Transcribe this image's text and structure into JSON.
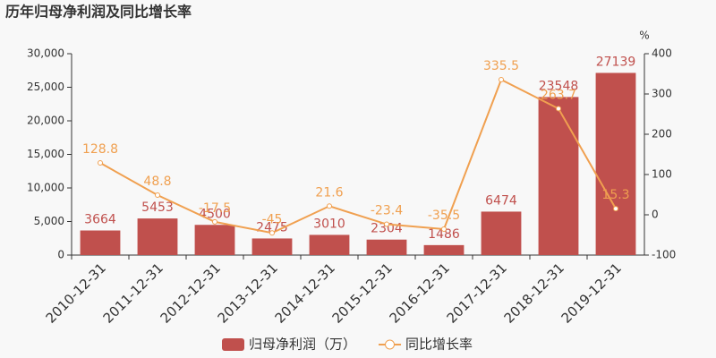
{
  "chart_data": {
    "type": "combo",
    "title": "历年归母净利润及同比增长率",
    "y2_label": "%",
    "categories": [
      "2010-12-31",
      "2011-12-31",
      "2012-12-31",
      "2013-12-31",
      "2014-12-31",
      "2015-12-31",
      "2016-12-31",
      "2017-12-31",
      "2018-12-31",
      "2019-12-31"
    ],
    "series": [
      {
        "name": "归母净利润（万）",
        "type": "bar",
        "color": "#c0504d",
        "values": [
          3664,
          5453,
          4500,
          2475,
          3010,
          2304,
          1486,
          6474,
          23548,
          27139
        ]
      },
      {
        "name": "同比增长率",
        "type": "line",
        "axis": "y2",
        "color": "#f0a050",
        "values": [
          128.8,
          48.8,
          -17.5,
          -45,
          21.6,
          -23.4,
          -35.5,
          335.5,
          263.7,
          15.3
        ]
      }
    ],
    "ylim": [
      0,
      30000
    ],
    "yticks": [
      0,
      {
        "value": 5000,
        "label": "5,000"
      },
      {
        "value": 10000,
        "label": "10,000"
      },
      {
        "value": 15000,
        "label": "15,000"
      },
      {
        "value": 20000,
        "label": "20,000"
      },
      {
        "value": 25000,
        "label": "25,000"
      },
      {
        "value": 30000,
        "label": "30,000"
      }
    ],
    "y2lim": [
      -100,
      400
    ],
    "y2ticks": [
      -100,
      0,
      100,
      200,
      300,
      400
    ]
  }
}
